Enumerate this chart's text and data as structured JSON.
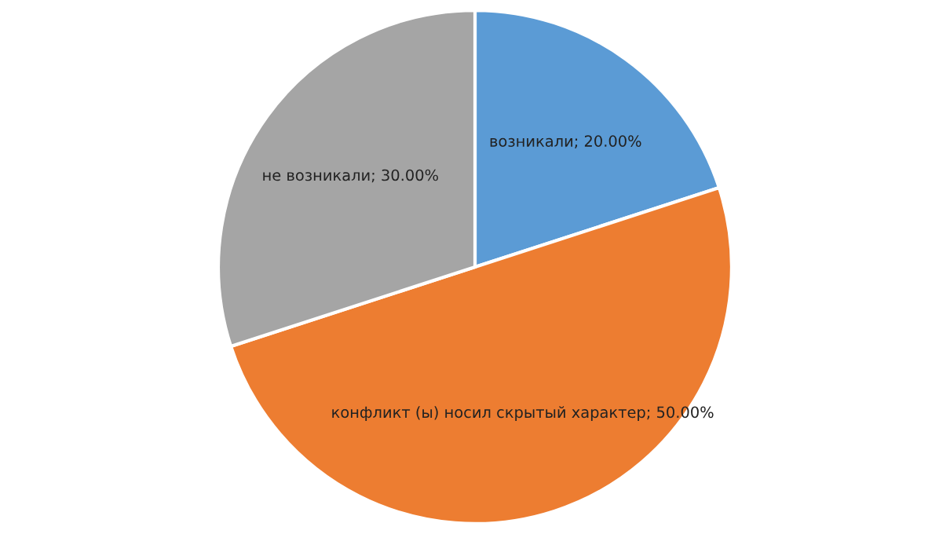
{
  "chart_data": {
    "type": "pie",
    "categories": [
      "возникали",
      "конфликт (ы) носил скрытый характер",
      "не возникали"
    ],
    "values": [
      20,
      50,
      30
    ],
    "colors": [
      "#5b9bd5",
      "#ed7d31",
      "#a5a5a5"
    ],
    "value_labels": [
      "20.00%",
      "50.00%",
      "30.00%"
    ]
  }
}
